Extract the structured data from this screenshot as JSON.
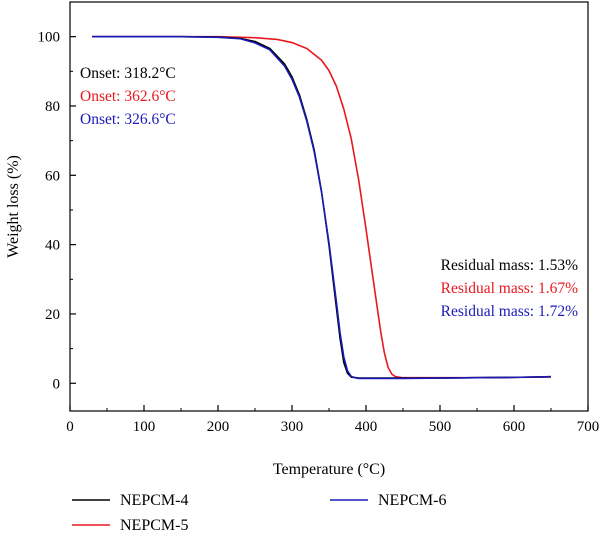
{
  "chart_data": {
    "type": "line",
    "xlabel": "Temperature (°C)",
    "ylabel": "Weight loss (%)",
    "xlim": [
      0,
      700
    ],
    "ylim": [
      -8,
      110
    ],
    "xticks": [
      0,
      100,
      200,
      300,
      400,
      500,
      600,
      700
    ],
    "yticks": [
      0,
      20,
      40,
      60,
      80,
      100
    ],
    "xtick_labels": [
      "0",
      "100",
      "200",
      "300",
      "400",
      "500",
      "600",
      "700"
    ],
    "ytick_labels": [
      "0",
      "20",
      "40",
      "60",
      "80",
      "100"
    ],
    "grid": false,
    "legend_position": "bottom",
    "series": [
      {
        "name": "NEPCM-4",
        "color": "#000000",
        "x": [
          30,
          100,
          150,
          200,
          230,
          250,
          270,
          290,
          300,
          310,
          320,
          330,
          340,
          350,
          360,
          365,
          370,
          375,
          380,
          390,
          400,
          450,
          500,
          550,
          600,
          650
        ],
        "y": [
          100,
          100,
          100,
          99.9,
          99.5,
          98.6,
          96.6,
          92.1,
          88.4,
          83.2,
          76.1,
          67.3,
          55.2,
          39.8,
          21.8,
          12.9,
          6.0,
          2.9,
          1.8,
          1.5,
          1.5,
          1.5,
          1.5,
          1.6,
          1.7,
          1.9
        ]
      },
      {
        "name": "NEPCM-5",
        "color": "#e8181f",
        "x": [
          30,
          100,
          150,
          200,
          250,
          280,
          300,
          320,
          340,
          350,
          360,
          370,
          380,
          390,
          400,
          410,
          420,
          425,
          430,
          435,
          440,
          450,
          500,
          550,
          600,
          650
        ],
        "y": [
          100,
          100,
          100,
          100,
          99.7,
          99.2,
          98.3,
          96.6,
          93.2,
          90.2,
          85.7,
          79.1,
          70.6,
          58.8,
          44.5,
          29.5,
          14.7,
          8.6,
          4.5,
          2.6,
          1.9,
          1.6,
          1.6,
          1.6,
          1.7,
          1.8
        ]
      },
      {
        "name": "NEPCM-6",
        "color": "#1a1ab8",
        "x": [
          30,
          100,
          150,
          200,
          230,
          250,
          270,
          290,
          300,
          310,
          320,
          330,
          340,
          350,
          360,
          365,
          370,
          375,
          380,
          385,
          390,
          400,
          450,
          500,
          550,
          600,
          650
        ],
        "y": [
          100,
          100,
          100,
          99.8,
          99.4,
          98.2,
          96.2,
          91.5,
          87.7,
          82.6,
          75.6,
          66.8,
          55.0,
          40.5,
          23.5,
          14.5,
          7.6,
          3.6,
          2.0,
          1.6,
          1.4,
          1.4,
          1.4,
          1.5,
          1.6,
          1.7,
          1.9
        ]
      }
    ],
    "annotations": {
      "onset": [
        {
          "text": "Onset: 318.2°C",
          "color": "#000000"
        },
        {
          "text": "Onset: 362.6°C",
          "color": "#e8181f"
        },
        {
          "text": "Onset: 326.6°C",
          "color": "#1a1ab8"
        }
      ],
      "residual": [
        {
          "text": "Residual mass: 1.53%",
          "color": "#000000"
        },
        {
          "text": "Residual mass: 1.67%",
          "color": "#e8181f"
        },
        {
          "text": "Residual mass: 1.72%",
          "color": "#1a1ab8"
        }
      ]
    }
  }
}
